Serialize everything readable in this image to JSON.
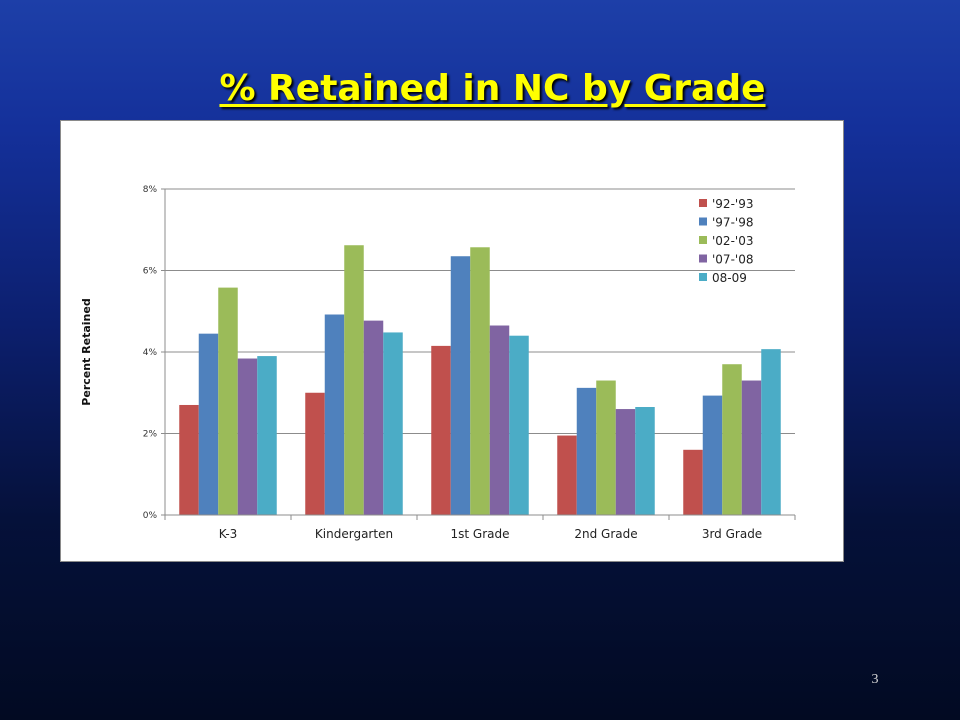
{
  "slide": {
    "title": "% Retained in NC by Grade",
    "page_number": "3"
  },
  "chart_data": {
    "type": "bar",
    "title": "",
    "xlabel": "",
    "ylabel": "Percent Retained",
    "ylim": [
      0,
      8
    ],
    "y_ticks": [
      "0%",
      "2%",
      "4%",
      "6%",
      "8%"
    ],
    "grid": true,
    "legend_position": "top-right",
    "categories": [
      "K-3",
      "Kindergarten",
      "1st Grade",
      "2nd Grade",
      "3rd Grade"
    ],
    "series": [
      {
        "name": "'92-'93",
        "color": "#c0504d",
        "values": [
          2.7,
          3.0,
          4.15,
          1.95,
          1.6
        ]
      },
      {
        "name": "'97-'98",
        "color": "#4f81bd",
        "values": [
          4.45,
          4.92,
          6.35,
          3.12,
          2.93
        ]
      },
      {
        "name": "'02-'03",
        "color": "#9bbb59",
        "values": [
          5.58,
          6.62,
          6.57,
          3.3,
          3.7
        ]
      },
      {
        "name": "'07-'08",
        "color": "#8064a2",
        "values": [
          3.84,
          4.77,
          4.65,
          2.6,
          3.3
        ]
      },
      {
        "name": "08-09",
        "color": "#4bacc6",
        "values": [
          3.9,
          4.48,
          4.4,
          2.65,
          4.07
        ]
      }
    ]
  }
}
